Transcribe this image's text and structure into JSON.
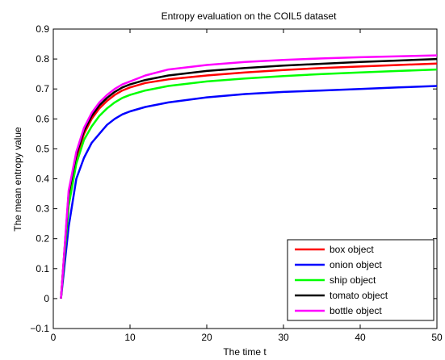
{
  "chart_data": {
    "type": "line",
    "title": "Entropy evaluation on the COIL5 dataset",
    "xlabel": "The time t",
    "ylabel": "The mean entropy value",
    "xlim": [
      0,
      50
    ],
    "ylim": [
      -0.1,
      0.9
    ],
    "xticks": [
      0,
      10,
      20,
      30,
      40,
      50
    ],
    "yticks": [
      -0.1,
      0,
      0.1,
      0.2,
      0.3,
      0.4,
      0.5,
      0.6,
      0.7,
      0.8,
      0.9
    ],
    "grid": false,
    "legend_position": "bottom-right",
    "x": [
      1,
      2,
      3,
      4,
      5,
      6,
      7,
      8,
      9,
      10,
      12,
      15,
      20,
      25,
      30,
      35,
      40,
      45,
      50
    ],
    "series": [
      {
        "name": "box object",
        "color": "#ff0000",
        "values": [
          0.0,
          0.34,
          0.47,
          0.55,
          0.6,
          0.635,
          0.66,
          0.68,
          0.695,
          0.705,
          0.72,
          0.732,
          0.745,
          0.755,
          0.763,
          0.77,
          0.775,
          0.78,
          0.785
        ]
      },
      {
        "name": "onion object",
        "color": "#0000ff",
        "values": [
          0.0,
          0.24,
          0.4,
          0.47,
          0.52,
          0.55,
          0.58,
          0.6,
          0.615,
          0.625,
          0.64,
          0.655,
          0.672,
          0.683,
          0.69,
          0.695,
          0.7,
          0.705,
          0.71
        ]
      },
      {
        "name": "ship object",
        "color": "#00ff00",
        "values": [
          0.0,
          0.31,
          0.45,
          0.53,
          0.575,
          0.61,
          0.635,
          0.655,
          0.67,
          0.68,
          0.695,
          0.71,
          0.725,
          0.735,
          0.743,
          0.75,
          0.755,
          0.76,
          0.765
        ]
      },
      {
        "name": "tomato object",
        "color": "#000000",
        "values": [
          0.0,
          0.35,
          0.48,
          0.56,
          0.61,
          0.645,
          0.67,
          0.69,
          0.705,
          0.715,
          0.73,
          0.745,
          0.76,
          0.77,
          0.778,
          0.784,
          0.79,
          0.795,
          0.8
        ]
      },
      {
        "name": "bottle object",
        "color": "#ff00ff",
        "values": [
          0.0,
          0.36,
          0.49,
          0.57,
          0.62,
          0.655,
          0.68,
          0.7,
          0.715,
          0.725,
          0.745,
          0.765,
          0.78,
          0.79,
          0.797,
          0.802,
          0.806,
          0.809,
          0.812
        ]
      }
    ]
  }
}
